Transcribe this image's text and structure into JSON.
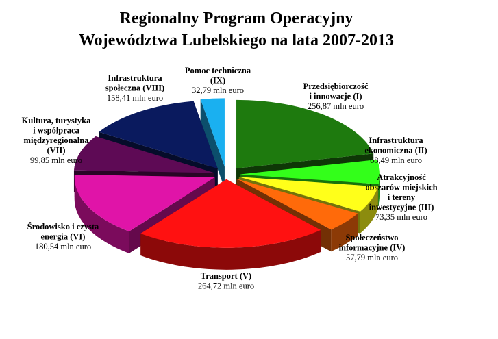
{
  "chart_data": {
    "type": "pie",
    "title": [
      "Regionalny Program Operacyjny",
      "Województwa Lubelskiego na lata 2007-2013"
    ],
    "slices": [
      {
        "name": [
          "Przedsiębiorczość",
          "i innowacje (I)"
        ],
        "value": 256.87,
        "value_label": "256,87 mln euro",
        "color": "#1E7A0E"
      },
      {
        "name": [
          "Infrastruktura",
          "ekonomiczna (II)"
        ],
        "value": 68.49,
        "value_label": "68,49 mln euro",
        "color": "#33FF1A"
      },
      {
        "name": [
          "Atrakcyjność",
          "obszarów miejskich",
          "i tereny",
          "inwestycyjne (III)"
        ],
        "value": 73.35,
        "value_label": "73,35 mln euro",
        "color": "#FFFF1A"
      },
      {
        "name": [
          "Społeczeństwo",
          "informacyjne (IV)"
        ],
        "value": 57.79,
        "value_label": "57,79 mln euro",
        "color": "#FF6A0A"
      },
      {
        "name": [
          "Transport (V)"
        ],
        "value": 264.72,
        "value_label": "264,72 mln euro",
        "color": "#FF1111"
      },
      {
        "name": [
          "Środowisko i czysta",
          "energia (VI)"
        ],
        "value": 180.54,
        "value_label": "180,54 mln euro",
        "color": "#E014A8"
      },
      {
        "name": [
          "Kultura, turystyka",
          "i współpraca",
          "międzyregionalna",
          "(VII)"
        ],
        "value": 99.85,
        "value_label": "99,85 mln euro",
        "color": "#5E0A55"
      },
      {
        "name": [
          "Infrastruktura",
          "społeczna (VIII)"
        ],
        "value": 158.41,
        "value_label": "158,41 mln euro",
        "color": "#0A1A5E"
      },
      {
        "name": [
          "Pomoc techniczna",
          "(IX)"
        ],
        "value": 32.79,
        "value_label": "32,79 mln euro",
        "color": "#1AB0F0"
      }
    ]
  }
}
